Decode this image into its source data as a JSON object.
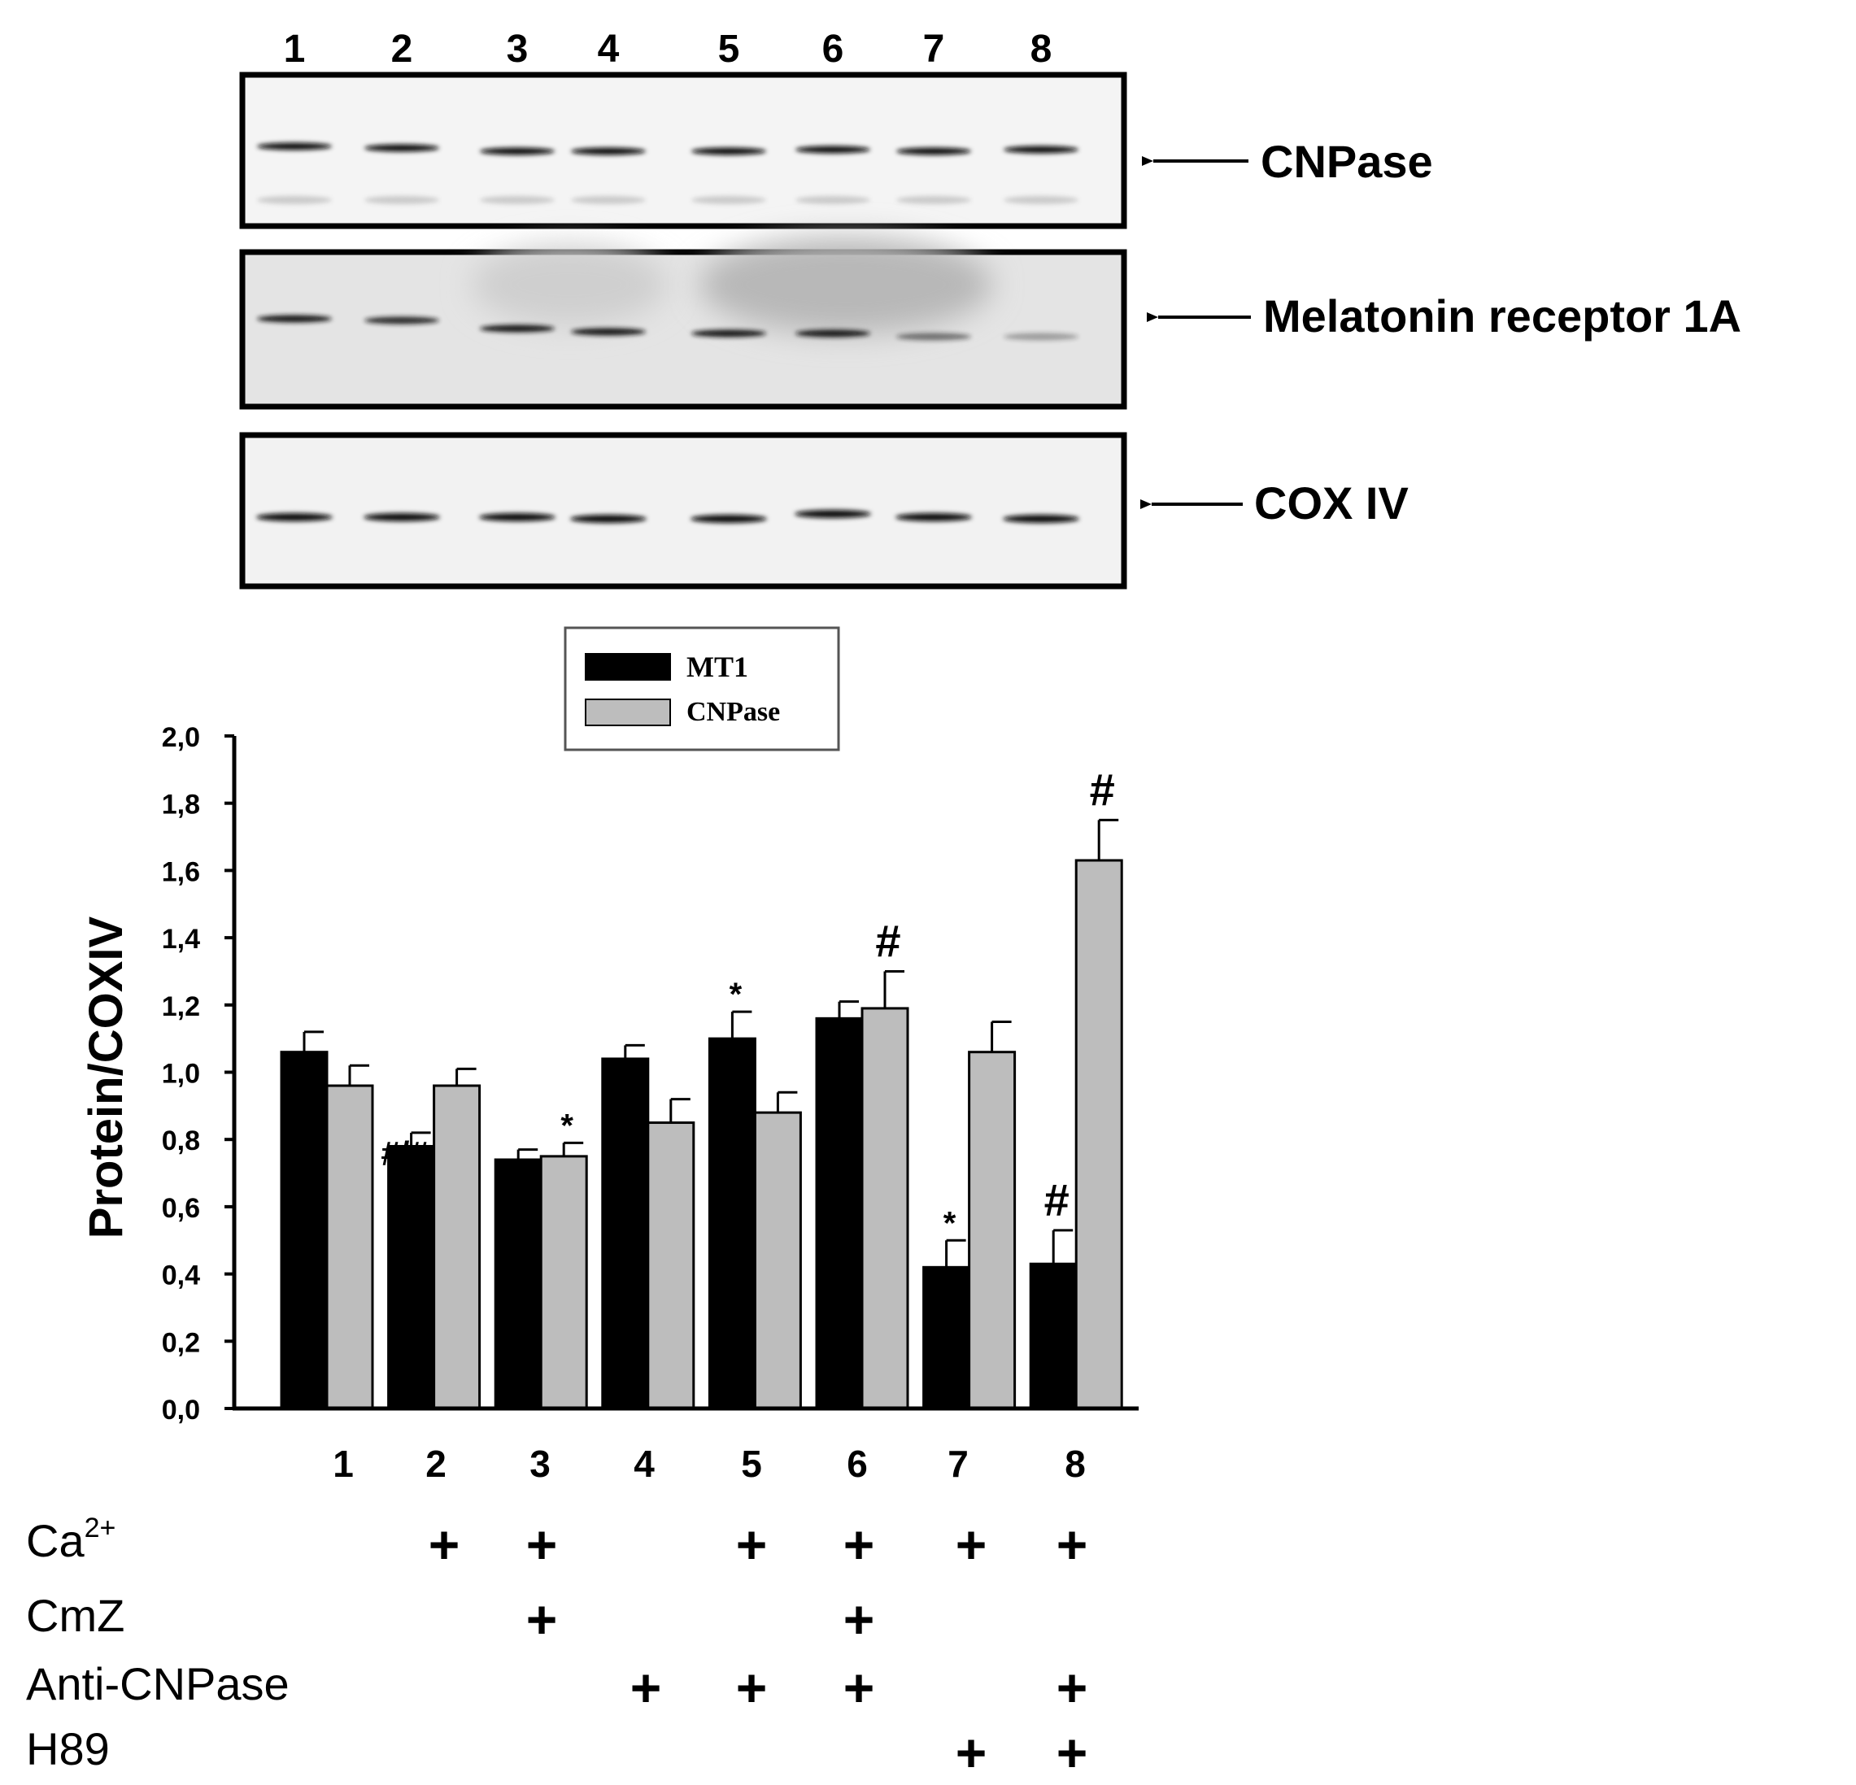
{
  "blot": {
    "lane_numbers": [
      "1",
      "2",
      "3",
      "4",
      "5",
      "6",
      "7",
      "8"
    ],
    "rows": [
      {
        "label": "CNPase"
      },
      {
        "label": "Melatonin receptor 1A"
      },
      {
        "label": "COX IV"
      }
    ]
  },
  "chart_data": {
    "type": "bar",
    "categories": [
      "1",
      "2",
      "3",
      "4",
      "5",
      "6",
      "7",
      "8"
    ],
    "series": [
      {
        "name": "MT1",
        "color": "#000000",
        "values": [
          1.06,
          0.78,
          0.74,
          1.04,
          1.1,
          1.16,
          0.42,
          0.43
        ],
        "errors": [
          0.06,
          0.04,
          0.03,
          0.04,
          0.08,
          0.05,
          0.08,
          0.1
        ],
        "annotations": [
          "",
          "#/#",
          "",
          "",
          "*",
          "",
          "*",
          "#"
        ]
      },
      {
        "name": "CNPase",
        "color": "#bdbdbd",
        "values": [
          0.96,
          0.96,
          0.75,
          0.85,
          0.88,
          1.19,
          1.06,
          1.63
        ],
        "errors": [
          0.06,
          0.05,
          0.04,
          0.07,
          0.06,
          0.11,
          0.09,
          0.12
        ],
        "annotations": [
          "",
          "",
          "*",
          "",
          "",
          "#",
          "",
          "#"
        ]
      }
    ],
    "ylabel": "Protein/COXIV",
    "ylim": [
      0,
      2.0
    ],
    "yticks": [
      "0,0",
      "0,2",
      "0,4",
      "0,6",
      "0,8",
      "1,0",
      "1,2",
      "1,4",
      "1,6",
      "1,8",
      "2,0"
    ],
    "legend_position": "top-center",
    "grid": false
  },
  "treatments": [
    {
      "label": "Ca",
      "sup": "2+",
      "plus": [
        false,
        true,
        true,
        false,
        true,
        true,
        true,
        true
      ]
    },
    {
      "label": "CmZ",
      "sup": "",
      "plus": [
        false,
        false,
        true,
        false,
        false,
        true,
        false,
        false
      ]
    },
    {
      "label": "Anti-CNPase",
      "sup": "",
      "plus": [
        false,
        false,
        false,
        true,
        true,
        true,
        false,
        true
      ]
    },
    {
      "label": "H89",
      "sup": "",
      "plus": [
        false,
        false,
        false,
        false,
        false,
        false,
        true,
        true
      ]
    }
  ],
  "plus_sign": "+"
}
